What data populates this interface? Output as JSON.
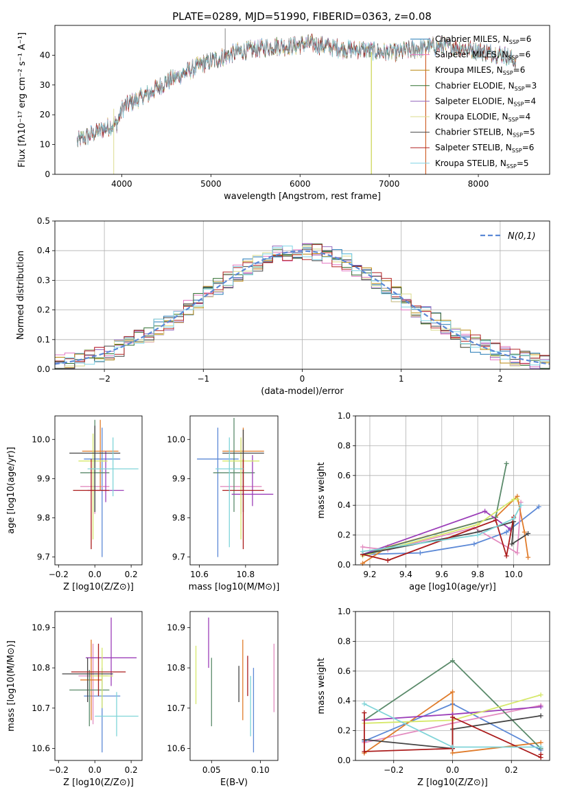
{
  "figure_title": "PLATE=0289, MJD=51990, FIBERID=0363, z=0.08",
  "colors": [
    "#1f77b4",
    "#e377c2",
    "#b8860b",
    "#2f6e2f",
    "#9467bd",
    "#dbdb8d",
    "#444444",
    "#b22222",
    "#7fd4e6"
  ],
  "mw_colors": [
    "#5b88d6",
    "#e38cc0",
    "#e07b2a",
    "#5a8a6a",
    "#9b3db8",
    "#d6e86a",
    "#444444",
    "#aa1a1a",
    "#7fd4d8"
  ],
  "chart_data": [
    {
      "id": "spectrum",
      "type": "line",
      "title": "PLATE=0289, MJD=51990, FIBERID=0363, z=0.08",
      "xlabel": "wavelength [Angstrom, rest frame]",
      "ylabel": "Flux [fλ10⁻¹⁷ erg cm⁻² s⁻¹ A⁻¹]",
      "xlim": [
        3250,
        8800
      ],
      "ylim": [
        0,
        50
      ],
      "xticks": [
        4000,
        5000,
        6000,
        7000,
        8000
      ],
      "yticks": [
        0,
        10,
        20,
        30,
        40
      ],
      "grid": false,
      "legend": "upper right",
      "continuum": {
        "x": [
          3500,
          3700,
          3850,
          3950,
          4000,
          4100,
          4300,
          4500,
          4700,
          4900,
          5100,
          5300,
          5500,
          5700,
          5900,
          6100,
          6300,
          6500,
          6700,
          6900,
          7100,
          7300,
          7500,
          7700,
          7900,
          8100,
          8300,
          8420
        ],
        "y": [
          11,
          14,
          16,
          17,
          22,
          24,
          27,
          31,
          34,
          37,
          39,
          41,
          42,
          43,
          43,
          44,
          43,
          42,
          42,
          41,
          41,
          42,
          43,
          43,
          42,
          41,
          40,
          38
        ]
      },
      "series": [
        {
          "name": "Chabrier MILES, N_SSP=6",
          "label_main": "Chabrier MILES, N",
          "label_sub": "SSP",
          "label_tail": "=6"
        },
        {
          "name": "Salpeter MILES, N_SSP=6",
          "label_main": "Salpeter MILES, N",
          "label_sub": "SSP",
          "label_tail": "=6"
        },
        {
          "name": "Kroupa MILES, N_SSP=6",
          "label_main": "Kroupa MILES, N",
          "label_sub": "SSP",
          "label_tail": "=6"
        },
        {
          "name": "Chabrier ELODIE, N_SSP=3",
          "label_main": "Chabrier ELODIE, N",
          "label_sub": "SSP",
          "label_tail": "=3"
        },
        {
          "name": "Salpeter ELODIE, N_SSP=4",
          "label_main": "Salpeter ELODIE, N",
          "label_sub": "SSP",
          "label_tail": "=4"
        },
        {
          "name": "Kroupa ELODIE, N_SSP=4",
          "label_main": "Kroupa ELODIE, N",
          "label_sub": "SSP",
          "label_tail": "=4"
        },
        {
          "name": "Chabrier STELIB, N_SSP=5",
          "label_main": "Chabrier STELIB, N",
          "label_sub": "SSP",
          "label_tail": "=5"
        },
        {
          "name": "Salpeter STELIB, N_SSP=6",
          "label_main": "Salpeter STELIB, N",
          "label_sub": "SSP",
          "label_tail": "=6"
        },
        {
          "name": "Kroupa STELIB, N_SSP=5",
          "label_main": "Kroupa STELIB, N",
          "label_sub": "SSP",
          "label_tail": "=5"
        }
      ]
    },
    {
      "id": "residuals",
      "type": "line",
      "xlabel": "(data-model)/error",
      "ylabel": "Normed distribution",
      "xlim": [
        -2.5,
        2.5
      ],
      "ylim": [
        0,
        0.5
      ],
      "xticks": [
        -2,
        -1,
        0,
        1,
        2
      ],
      "yticks": [
        0.0,
        0.1,
        0.2,
        0.3,
        0.4,
        0.5
      ],
      "grid": true,
      "legend": "upper right",
      "gaussian_label": "N(0,1)",
      "bin_width": 0.1,
      "x_start": -2.5
    },
    {
      "id": "age-vs-Z",
      "type": "scatter",
      "xlabel": "Z [log10(Z/Z⊙)]",
      "ylabel": "age [log10(age/yr)]",
      "xlim": [
        -0.22,
        0.26
      ],
      "ylim": [
        9.68,
        10.06
      ],
      "xticks": [
        -0.2,
        0.0,
        0.2
      ],
      "yticks": [
        9.7,
        9.8,
        9.9,
        10.0
      ],
      "points": [
        {
          "x": 0.04,
          "y": 9.95,
          "xerr": 0.1,
          "yerr": [
            0.25,
            0.08
          ]
        },
        {
          "x": 0.0,
          "y": 9.88,
          "xerr": 0.08,
          "yerr": [
            0.07,
            0.12
          ]
        },
        {
          "x": 0.03,
          "y": 9.97,
          "xerr": 0.1,
          "yerr": [
            0.1,
            0.08
          ]
        },
        {
          "x": 0.0,
          "y": 9.915,
          "xerr": 0.08,
          "yerr": [
            0.1,
            0.135
          ]
        },
        {
          "x": 0.06,
          "y": 9.87,
          "xerr": 0.1,
          "yerr": [
            0.03,
            0.1
          ]
        },
        {
          "x": -0.01,
          "y": 9.945,
          "xerr": 0.08,
          "yerr": [
            0.2,
            0.07
          ]
        },
        {
          "x": 0.0,
          "y": 9.965,
          "xerr": 0.14,
          "yerr": [
            0.15,
            0.07
          ]
        },
        {
          "x": -0.02,
          "y": 9.87,
          "xerr": 0.1,
          "yerr": [
            0.15,
            0.08
          ]
        },
        {
          "x": 0.1,
          "y": 9.925,
          "xerr": 0.14,
          "yerr": [
            0.07,
            0.08
          ]
        }
      ]
    },
    {
      "id": "age-vs-mass",
      "type": "scatter",
      "xlabel": "mass [log10(M/M⊙)]",
      "ylabel": "",
      "xlim": [
        10.56,
        10.94
      ],
      "ylim": [
        9.68,
        10.06
      ],
      "xticks": [
        10.6,
        10.8
      ],
      "yticks": [
        9.7,
        9.8,
        9.9,
        10.0
      ],
      "points": [
        {
          "x": 10.68,
          "y": 9.95,
          "xerr": 0.09,
          "yerr": [
            0.25,
            0.08
          ]
        },
        {
          "x": 10.78,
          "y": 9.88,
          "xerr": 0.09,
          "yerr": [
            0.07,
            0.12
          ]
        },
        {
          "x": 10.79,
          "y": 9.97,
          "xerr": 0.09,
          "yerr": [
            0.1,
            0.06
          ]
        },
        {
          "x": 10.75,
          "y": 9.915,
          "xerr": 0.09,
          "yerr": [
            0.1,
            0.14
          ]
        },
        {
          "x": 10.83,
          "y": 9.86,
          "xerr": 0.09,
          "yerr": [
            0.03,
            0.1
          ]
        },
        {
          "x": 10.78,
          "y": 9.945,
          "xerr": 0.08,
          "yerr": [
            0.2,
            0.06
          ]
        },
        {
          "x": 10.79,
          "y": 9.965,
          "xerr": 0.09,
          "yerr": [
            0.15,
            0.06
          ]
        },
        {
          "x": 10.79,
          "y": 9.87,
          "xerr": 0.09,
          "yerr": [
            0.15,
            0.08
          ]
        },
        {
          "x": 10.73,
          "y": 9.925,
          "xerr": 0.06,
          "yerr": [
            0.2,
            0.08
          ]
        }
      ]
    },
    {
      "id": "massweight-vs-age",
      "type": "line",
      "xlabel": "age [log10(age/yr)]",
      "ylabel": "mass weight",
      "xlim": [
        9.12,
        10.2
      ],
      "ylim": [
        0,
        1.0
      ],
      "xticks": [
        9.2,
        9.4,
        9.6,
        9.8,
        10.0
      ],
      "yticks": [
        0.0,
        0.2,
        0.4,
        0.6,
        0.8,
        1.0
      ],
      "grid": true,
      "series": [
        {
          "x": [
            9.16,
            9.48,
            9.78,
            9.96,
            10.14
          ],
          "y": [
            0.07,
            0.08,
            0.14,
            0.22,
            0.39
          ]
        },
        {
          "x": [
            9.16,
            9.3,
            9.78,
            10.02,
            10.04
          ],
          "y": [
            0.12,
            0.1,
            0.25,
            0.08,
            0.42
          ]
        },
        {
          "x": [
            9.16,
            9.3,
            9.9,
            10.02,
            10.06,
            10.08
          ],
          "y": [
            0.01,
            0.12,
            0.32,
            0.46,
            0.22,
            0.05
          ]
        },
        {
          "x": [
            9.16,
            9.9,
            9.96
          ],
          "y": [
            0.07,
            0.32,
            0.68
          ]
        },
        {
          "x": [
            9.16,
            9.84,
            9.98
          ],
          "y": [
            0.07,
            0.36,
            0.24
          ]
        },
        {
          "x": [
            9.16,
            9.8,
            10.0,
            10.02
          ],
          "y": [
            0.06,
            0.27,
            0.44,
            0.44
          ]
        },
        {
          "x": [
            9.16,
            9.8,
            10.0,
            9.99,
            10.08
          ],
          "y": [
            0.07,
            0.22,
            0.29,
            0.14,
            0.21
          ]
        },
        {
          "x": [
            9.16,
            9.3,
            9.9,
            9.96,
            10.0
          ],
          "y": [
            0.07,
            0.03,
            0.3,
            0.06,
            0.32
          ]
        },
        {
          "x": [
            9.16,
            9.8,
            10.0,
            10.04
          ],
          "y": [
            0.09,
            0.2,
            0.31,
            0.4
          ]
        }
      ]
    },
    {
      "id": "mass-vs-Z",
      "type": "scatter",
      "xlabel": "Z [log10(Z/Z⊙)]",
      "ylabel": "mass [log10(M/M⊙)]",
      "xlim": [
        -0.22,
        0.26
      ],
      "ylim": [
        10.57,
        10.94
      ],
      "xticks": [
        -0.2,
        0.0,
        0.2
      ],
      "yticks": [
        10.6,
        10.7,
        10.8,
        10.9
      ],
      "points": [
        {
          "x": 0.04,
          "y": 10.73,
          "xerr": 0.1,
          "yerr": [
            0.14,
            0.07
          ]
        },
        {
          "x": -0.01,
          "y": 10.78,
          "xerr": 0.08,
          "yerr": [
            0.12,
            0.08
          ]
        },
        {
          "x": -0.02,
          "y": 10.77,
          "xerr": 0.06,
          "yerr": [
            0.1,
            0.1
          ]
        },
        {
          "x": -0.03,
          "y": 10.745,
          "xerr": 0.11,
          "yerr": [
            0.09,
            0.05
          ]
        },
        {
          "x": 0.09,
          "y": 10.825,
          "xerr": 0.14,
          "yerr": [
            0.07,
            0.1
          ]
        },
        {
          "x": 0.04,
          "y": 10.78,
          "xerr": 0.06,
          "yerr": [
            0.08,
            0.07
          ]
        },
        {
          "x": -0.04,
          "y": 10.785,
          "xerr": 0.14,
          "yerr": [
            0.07,
            0.04
          ]
        },
        {
          "x": 0.02,
          "y": 10.79,
          "xerr": 0.15,
          "yerr": [
            0.06,
            0.07
          ]
        },
        {
          "x": 0.12,
          "y": 10.68,
          "xerr": 0.12,
          "yerr": [
            0.05,
            0.06
          ]
        }
      ]
    },
    {
      "id": "mass-vs-ebv",
      "type": "scatter",
      "xlabel": "E(B-V)",
      "ylabel": "",
      "xlim": [
        0.028,
        0.118
      ],
      "ylim": [
        10.57,
        10.94
      ],
      "xticks": [
        0.05,
        0.1
      ],
      "yticks": [
        10.6,
        10.7,
        10.8,
        10.9
      ],
      "points": [
        {
          "x": 0.093,
          "y": 10.72,
          "xerr": 0,
          "yerr": [
            0.13,
            0.08
          ]
        },
        {
          "x": 0.114,
          "y": 10.77,
          "xerr": 0,
          "yerr": [
            0.08,
            0.09
          ]
        },
        {
          "x": 0.082,
          "y": 10.77,
          "xerr": 0,
          "yerr": [
            0.1,
            0.1
          ]
        },
        {
          "x": 0.05,
          "y": 10.74,
          "xerr": 0,
          "yerr": [
            0.085,
            0.085
          ]
        },
        {
          "x": 0.047,
          "y": 10.86,
          "xerr": 0,
          "yerr": [
            0.06,
            0.065
          ]
        },
        {
          "x": 0.034,
          "y": 10.78,
          "xerr": 0,
          "yerr": [
            0.07,
            0.075
          ]
        },
        {
          "x": 0.078,
          "y": 10.76,
          "xerr": 0,
          "yerr": [
            0.045,
            0.045
          ]
        },
        {
          "x": 0.087,
          "y": 10.78,
          "xerr": 0,
          "yerr": [
            0.05,
            0.05
          ]
        },
        {
          "x": 0.09,
          "y": 10.7,
          "xerr": 0,
          "yerr": [
            0.07,
            0.08
          ]
        }
      ]
    },
    {
      "id": "massweight-vs-Z",
      "type": "line",
      "xlabel": "Z [log10(Z/Z⊙)]",
      "ylabel": "mass weight",
      "xlim": [
        -0.33,
        0.33
      ],
      "ylim": [
        0,
        1.0
      ],
      "xticks": [
        -0.2,
        0.0,
        0.2
      ],
      "yticks": [
        0.0,
        0.2,
        0.4,
        0.6,
        0.8,
        1.0
      ],
      "grid": true,
      "series": [
        {
          "x": [
            -0.3,
            0.0,
            0.3
          ],
          "y": [
            0.13,
            0.38,
            0.07
          ]
        },
        {
          "x": [
            -0.3,
            0.0,
            0.3
          ],
          "y": [
            0.12,
            0.25,
            0.37
          ]
        },
        {
          "x": [
            -0.3,
            -0.3,
            0.0,
            0.0,
            0.3
          ],
          "y": [
            0.05,
            0.05,
            0.46,
            0.05,
            0.12
          ]
        },
        {
          "x": [
            -0.3,
            0.0,
            0.3
          ],
          "y": [
            0.27,
            0.67,
            0.08
          ]
        },
        {
          "x": [
            -0.3,
            0.0,
            0.3
          ],
          "y": [
            0.27,
            0.31,
            0.36
          ]
        },
        {
          "x": [
            -0.3,
            0.0,
            0.3
          ],
          "y": [
            0.25,
            0.27,
            0.44
          ]
        },
        {
          "x": [
            -0.3,
            0.0,
            0.0,
            0.3
          ],
          "y": [
            0.14,
            0.08,
            0.21,
            0.3
          ]
        },
        {
          "x": [
            -0.3,
            -0.3,
            0.0,
            0.0,
            0.3,
            0.3
          ],
          "y": [
            0.32,
            0.06,
            0.08,
            0.29,
            0.02,
            0.04
          ]
        },
        {
          "x": [
            -0.3,
            0.0,
            0.3
          ],
          "y": [
            0.38,
            0.09,
            0.09
          ]
        }
      ]
    }
  ]
}
